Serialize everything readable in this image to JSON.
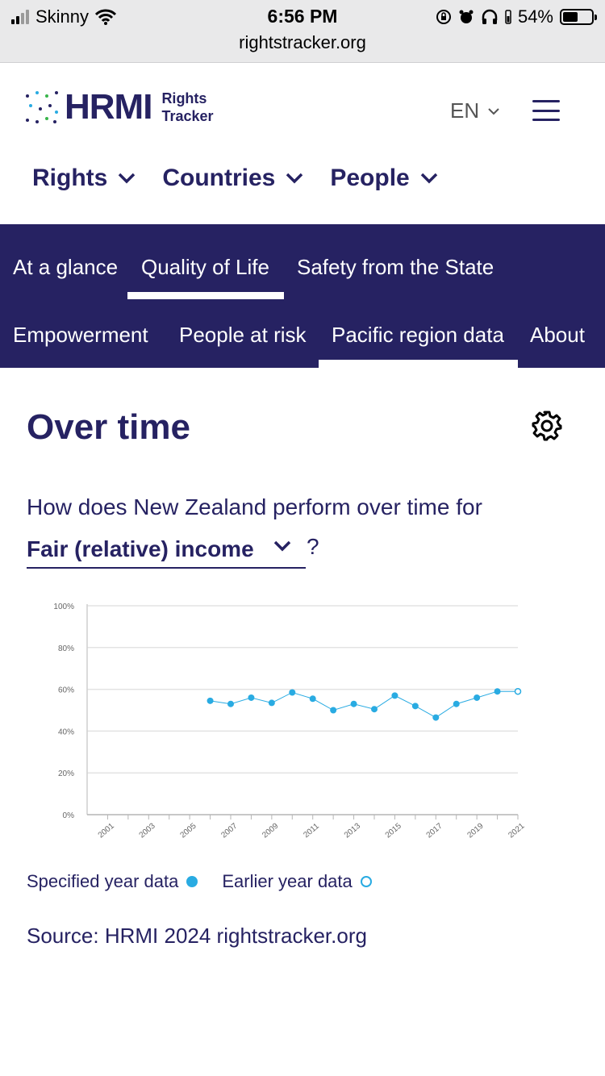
{
  "status_bar": {
    "carrier": "Skinny",
    "time": "6:56 PM",
    "battery": "54%",
    "battery_level": 0.54,
    "url": "rightstracker.org"
  },
  "header": {
    "logo_word": "HRMI",
    "logo_sub_1": "Rights",
    "logo_sub_2": "Tracker",
    "language": "EN",
    "nav": [
      {
        "label": "Rights"
      },
      {
        "label": "Countries"
      },
      {
        "label": "People"
      }
    ]
  },
  "subnav": {
    "items": [
      {
        "label": "At a glance"
      },
      {
        "label": "Quality of Life"
      },
      {
        "label": "Safety from the State"
      },
      {
        "label": "Empowerment"
      },
      {
        "label": "People at risk"
      },
      {
        "label": "Pacific region data"
      },
      {
        "label": "About"
      }
    ],
    "active": "Quality of Life"
  },
  "content": {
    "title": "Over time",
    "question": "How does New Zealand perform over time for",
    "indicator": "Fair (relative) income",
    "question_mark": "?",
    "legend_specified": "Specified year data",
    "legend_earlier": "Earlier year data",
    "source": "Source: HRMI 2024 rightstracker.org"
  },
  "colors": {
    "brand_navy": "#262262",
    "series_blue": "#29abe2"
  },
  "chart_data": {
    "type": "line",
    "title": "",
    "xlabel": "",
    "ylabel": "",
    "ylim": [
      0,
      100
    ],
    "xlim": [
      2000,
      2021
    ],
    "y_ticks": [
      "0%",
      "20%",
      "40%",
      "60%",
      "80%",
      "100%"
    ],
    "x_ticks": [
      "2001",
      "2003",
      "2005",
      "2007",
      "2009",
      "2011",
      "2013",
      "2015",
      "2017",
      "2019",
      "2021"
    ],
    "grid": true,
    "series": [
      {
        "name": "Specified year data",
        "x": [
          2006,
          2007,
          2008,
          2009,
          2010,
          2011,
          2012,
          2013,
          2014,
          2015,
          2016,
          2017,
          2018,
          2019,
          2020
        ],
        "values": [
          54.5,
          53,
          56,
          53.5,
          58.5,
          55.5,
          50,
          53,
          50.5,
          57,
          52,
          46.5,
          53,
          56,
          59
        ]
      },
      {
        "name": "Earlier year data",
        "x": [
          2021
        ],
        "values": [
          59
        ]
      }
    ]
  }
}
